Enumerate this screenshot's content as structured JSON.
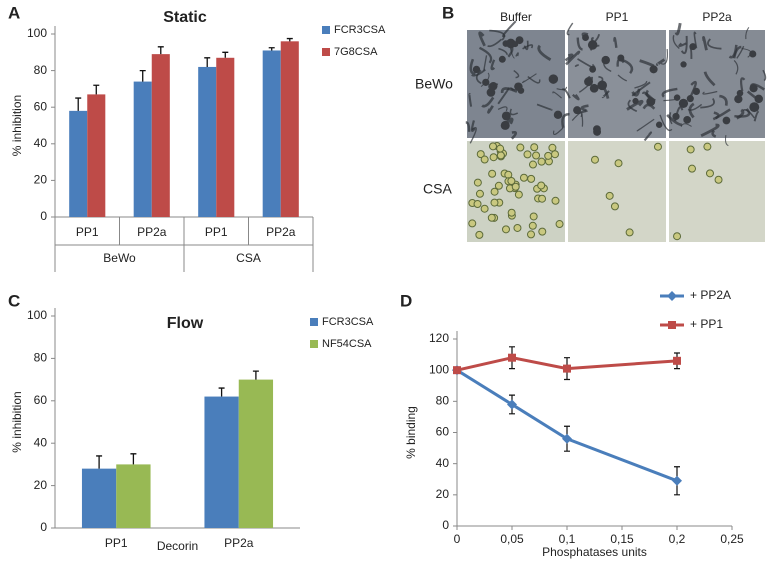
{
  "chart_data": [
    {
      "type": "bar",
      "panel_label": "A",
      "title": "Static",
      "y_label": "% inhibition",
      "categories": [
        "PP1",
        "PP2a",
        "PP1",
        "PP2a"
      ],
      "group_labels": [
        "BeWo",
        "CSA"
      ],
      "series": [
        {
          "name": "FCR3CSA",
          "color": "#4a7ebb",
          "values": [
            58,
            74,
            82,
            91
          ],
          "errors": [
            7,
            6,
            5,
            1.5
          ]
        },
        {
          "name": "7G8CSA",
          "color": "#be4b48",
          "values": [
            67,
            89,
            87,
            96
          ],
          "errors": [
            5,
            4,
            3,
            1.5
          ]
        }
      ],
      "ylim": [
        0,
        100
      ],
      "yticks": [
        0,
        20,
        40,
        60,
        80,
        100
      ],
      "legend": "right"
    },
    {
      "type": "bar",
      "panel_label": "C",
      "title": "Flow",
      "y_label": "% inhibition",
      "x_label": "Decorin",
      "categories": [
        "PP1",
        "PP2a"
      ],
      "series": [
        {
          "name": "FCR3CSA",
          "color": "#4a7ebb",
          "values": [
            28,
            62
          ],
          "errors": [
            6,
            4
          ]
        },
        {
          "name": "NF54CSA",
          "color": "#98b954",
          "values": [
            30,
            70
          ],
          "errors": [
            5,
            4
          ]
        }
      ],
      "ylim": [
        0,
        100
      ],
      "yticks": [
        0,
        20,
        40,
        60,
        80,
        100
      ],
      "legend": "right"
    },
    {
      "type": "line",
      "panel_label": "D",
      "y_label": "% binding",
      "x_label": "Phosphatases units",
      "x": [
        0,
        0.05,
        0.1,
        0.2
      ],
      "series": [
        {
          "name": "+ PP2A",
          "color": "#4a7ebb",
          "marker": "diamond",
          "values": [
            100,
            78,
            56,
            29
          ],
          "errors": [
            0,
            6,
            8,
            9
          ]
        },
        {
          "name": "+ PP1",
          "color": "#be4b48",
          "marker": "square",
          "values": [
            100,
            108,
            101,
            106
          ],
          "errors": [
            0,
            7,
            7,
            5
          ]
        }
      ],
      "xlim": [
        0,
        0.25
      ],
      "xticks": [
        0,
        {
          "value": 0.05,
          "label": "0,05"
        },
        {
          "value": 0.1,
          "label": "0,1"
        },
        {
          "value": 0.15,
          "label": "0,15"
        },
        {
          "value": 0.2,
          "label": "0,2"
        },
        {
          "value": 0.25,
          "label": "0,25"
        }
      ],
      "ylim": [
        0,
        120
      ],
      "yticks": [
        0,
        20,
        40,
        60,
        80,
        100,
        120
      ],
      "legend": "top-right"
    }
  ],
  "image_panel": {
    "panel_label": "B",
    "columns": [
      "Buffer",
      "PP1",
      "PP2a"
    ],
    "rows": [
      "BeWo",
      "CSA"
    ]
  }
}
